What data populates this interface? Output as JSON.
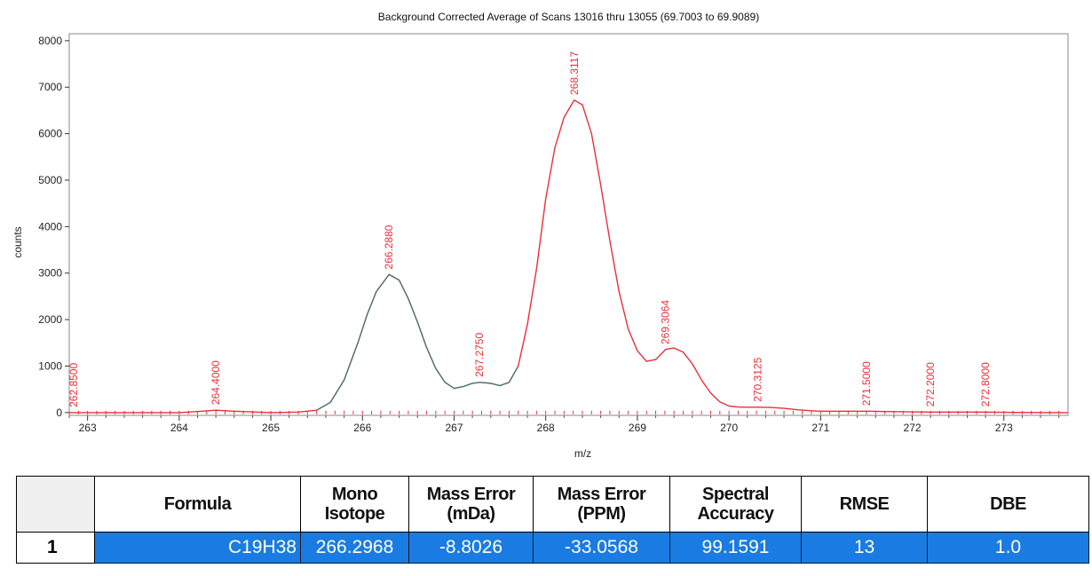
{
  "chart_data": {
    "type": "line",
    "title": "Background Corrected Average of Scans 13016 thru 13055 (69.7003 to 69.9089)",
    "xlabel": "m/z",
    "ylabel": "counts",
    "xlim": [
      262.8,
      273.7
    ],
    "ylim": [
      -60,
      8150
    ],
    "xticks": [
      263,
      264,
      265,
      266,
      267,
      268,
      269,
      270,
      271,
      272,
      273
    ],
    "yticks": [
      0,
      1000,
      2000,
      3000,
      4000,
      5000,
      6000,
      7000,
      8000
    ],
    "grid": false,
    "series": [
      {
        "color": "#e8303a",
        "x": [
          262.8,
          263.5,
          264.0,
          264.25,
          264.4,
          264.6,
          265.0,
          265.3,
          265.5,
          265.65,
          265.8,
          265.95,
          266.05,
          266.15,
          266.29,
          266.4,
          266.5,
          266.6,
          266.7,
          266.8,
          266.9,
          267.0,
          267.1,
          267.2,
          267.28,
          267.4,
          267.5,
          267.6,
          267.7,
          267.8,
          267.9,
          268.0,
          268.1,
          268.2,
          268.31,
          268.4,
          268.5,
          268.6,
          268.7,
          268.8,
          268.9,
          269.0,
          269.1,
          269.2,
          269.31,
          269.4,
          269.5,
          269.6,
          269.7,
          269.8,
          269.9,
          270.0,
          270.1,
          270.2,
          270.31,
          270.45,
          270.6,
          270.75,
          270.9,
          271.0,
          271.2,
          271.5,
          271.8,
          272.0,
          272.2,
          272.5,
          272.8,
          273.0,
          273.7
        ],
        "y": [
          0,
          0,
          0,
          30,
          50,
          30,
          0,
          10,
          50,
          220,
          700,
          1500,
          2100,
          2600,
          2970,
          2850,
          2450,
          1950,
          1400,
          950,
          650,
          520,
          560,
          630,
          650,
          630,
          580,
          650,
          1000,
          1900,
          3100,
          4600,
          5700,
          6350,
          6720,
          6620,
          6000,
          4900,
          3700,
          2600,
          1800,
          1330,
          1100,
          1140,
          1360,
          1390,
          1300,
          1050,
          700,
          420,
          230,
          140,
          120,
          115,
          115,
          110,
          90,
          60,
          40,
          30,
          30,
          30,
          20,
          15,
          10,
          10,
          10,
          5,
          0
        ]
      },
      {
        "color": "#2f7d72",
        "x": [
          265.5,
          265.65,
          265.8,
          265.95,
          266.05,
          266.15,
          266.29,
          266.4,
          266.5,
          266.6,
          266.7,
          266.8,
          266.9,
          267.0,
          267.1,
          267.2,
          267.28,
          267.4,
          267.5,
          267.6,
          267.7
        ],
        "y": [
          50,
          220,
          700,
          1500,
          2100,
          2600,
          2970,
          2850,
          2450,
          1950,
          1400,
          950,
          650,
          520,
          560,
          630,
          650,
          630,
          580,
          650,
          1000
        ]
      }
    ],
    "annotations": [
      {
        "label": "262.8500",
        "x": 262.85
      },
      {
        "label": "264.4000",
        "x": 264.4
      },
      {
        "label": "266.2880",
        "x": 266.288
      },
      {
        "label": "267.2750",
        "x": 267.275
      },
      {
        "label": "268.3117",
        "x": 268.3117
      },
      {
        "label": "269.3064",
        "x": 269.3064
      },
      {
        "label": "270.3125",
        "x": 270.3125
      },
      {
        "label": "271.5000",
        "x": 271.5
      },
      {
        "label": "272.2000",
        "x": 272.2
      },
      {
        "label": "272.8000",
        "x": 272.8
      }
    ],
    "annotation_color": "#e8303a"
  },
  "table": {
    "headers": [
      {
        "l1": "Formula",
        "l2": ""
      },
      {
        "l1": "Mono",
        "l2": "Isotope"
      },
      {
        "l1": "Mass Error",
        "l2": "(mDa)"
      },
      {
        "l1": "Mass Error",
        "l2": "(PPM)"
      },
      {
        "l1": "Spectral",
        "l2": "Accuracy"
      },
      {
        "l1": "RMSE",
        "l2": ""
      },
      {
        "l1": "DBE",
        "l2": ""
      }
    ],
    "rows": [
      {
        "num": "1",
        "cells": [
          "C19H38",
          "266.2968",
          "-8.8026",
          "-33.0568",
          "99.1591",
          "13",
          "1.0"
        ]
      }
    ],
    "selection_color": "#1a7be3"
  }
}
